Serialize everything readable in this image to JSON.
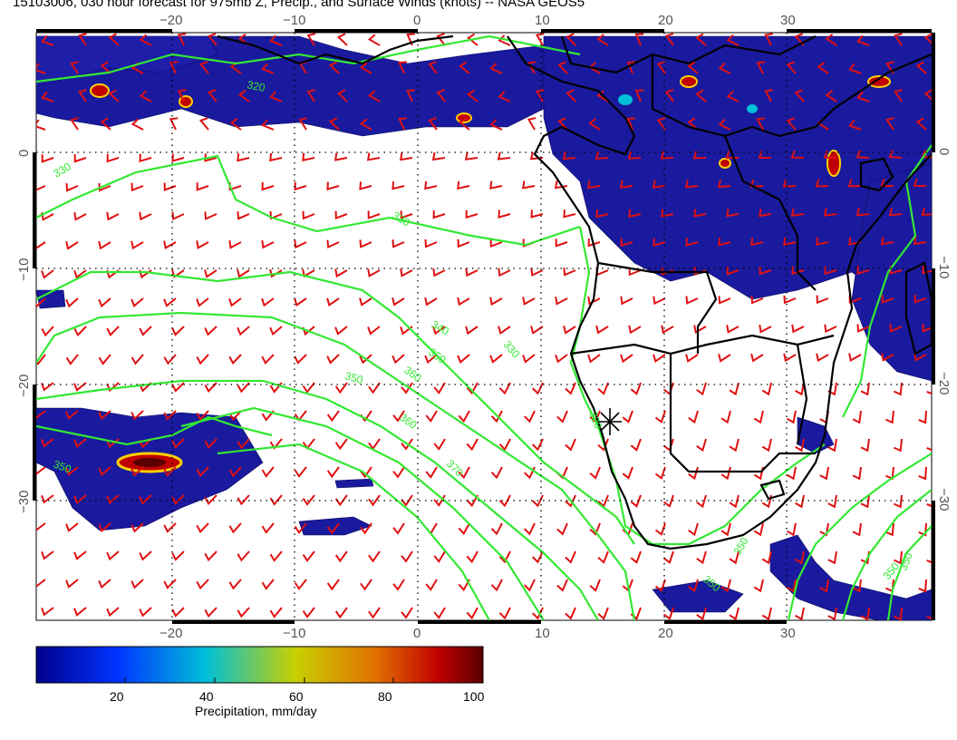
{
  "header": {
    "title": "15103006, 030 hour forecast for 975mb Z, Precip., and Surface Winds (knots) -- NASA GEOS5"
  },
  "map": {
    "lon_range": [
      -30,
      40
    ],
    "lat_range": [
      -40,
      10
    ],
    "lon_ticks": [
      -20,
      -10,
      0,
      10,
      20,
      30
    ],
    "lon_tick_labels": [
      "−20",
      "−10",
      "0",
      "10",
      "20",
      "30"
    ],
    "lat_ticks": [
      0,
      -10,
      -20,
      -30
    ],
    "lat_tick_labels": [
      "0",
      "−10",
      "−20",
      "−30"
    ],
    "gridlines": "dotted",
    "contour_labels": [
      "320",
      "330",
      "330",
      "330",
      "340",
      "350",
      "350",
      "360",
      "360",
      "370",
      "350",
      "350",
      "350",
      "350",
      "350",
      "320"
    ],
    "marker": {
      "symbol": "asterisk",
      "lon": 14.5,
      "lat": -23.8
    },
    "colors": {
      "precip_low": "#1a1a9e",
      "contours": "#33e833",
      "wind_barbs": "#e01010",
      "coastlines": "#000000"
    }
  },
  "colorbar": {
    "ticks": [
      "20",
      "40",
      "60",
      "80",
      "100"
    ],
    "tick_values": [
      20,
      40,
      60,
      80,
      100
    ],
    "range": [
      0,
      100
    ],
    "title": "Precipitation, mm/day",
    "colors": [
      "#00008b",
      "#0033ff",
      "#00bfd8",
      "#c8d000",
      "#e07000",
      "#c00000",
      "#5a0000"
    ]
  }
}
